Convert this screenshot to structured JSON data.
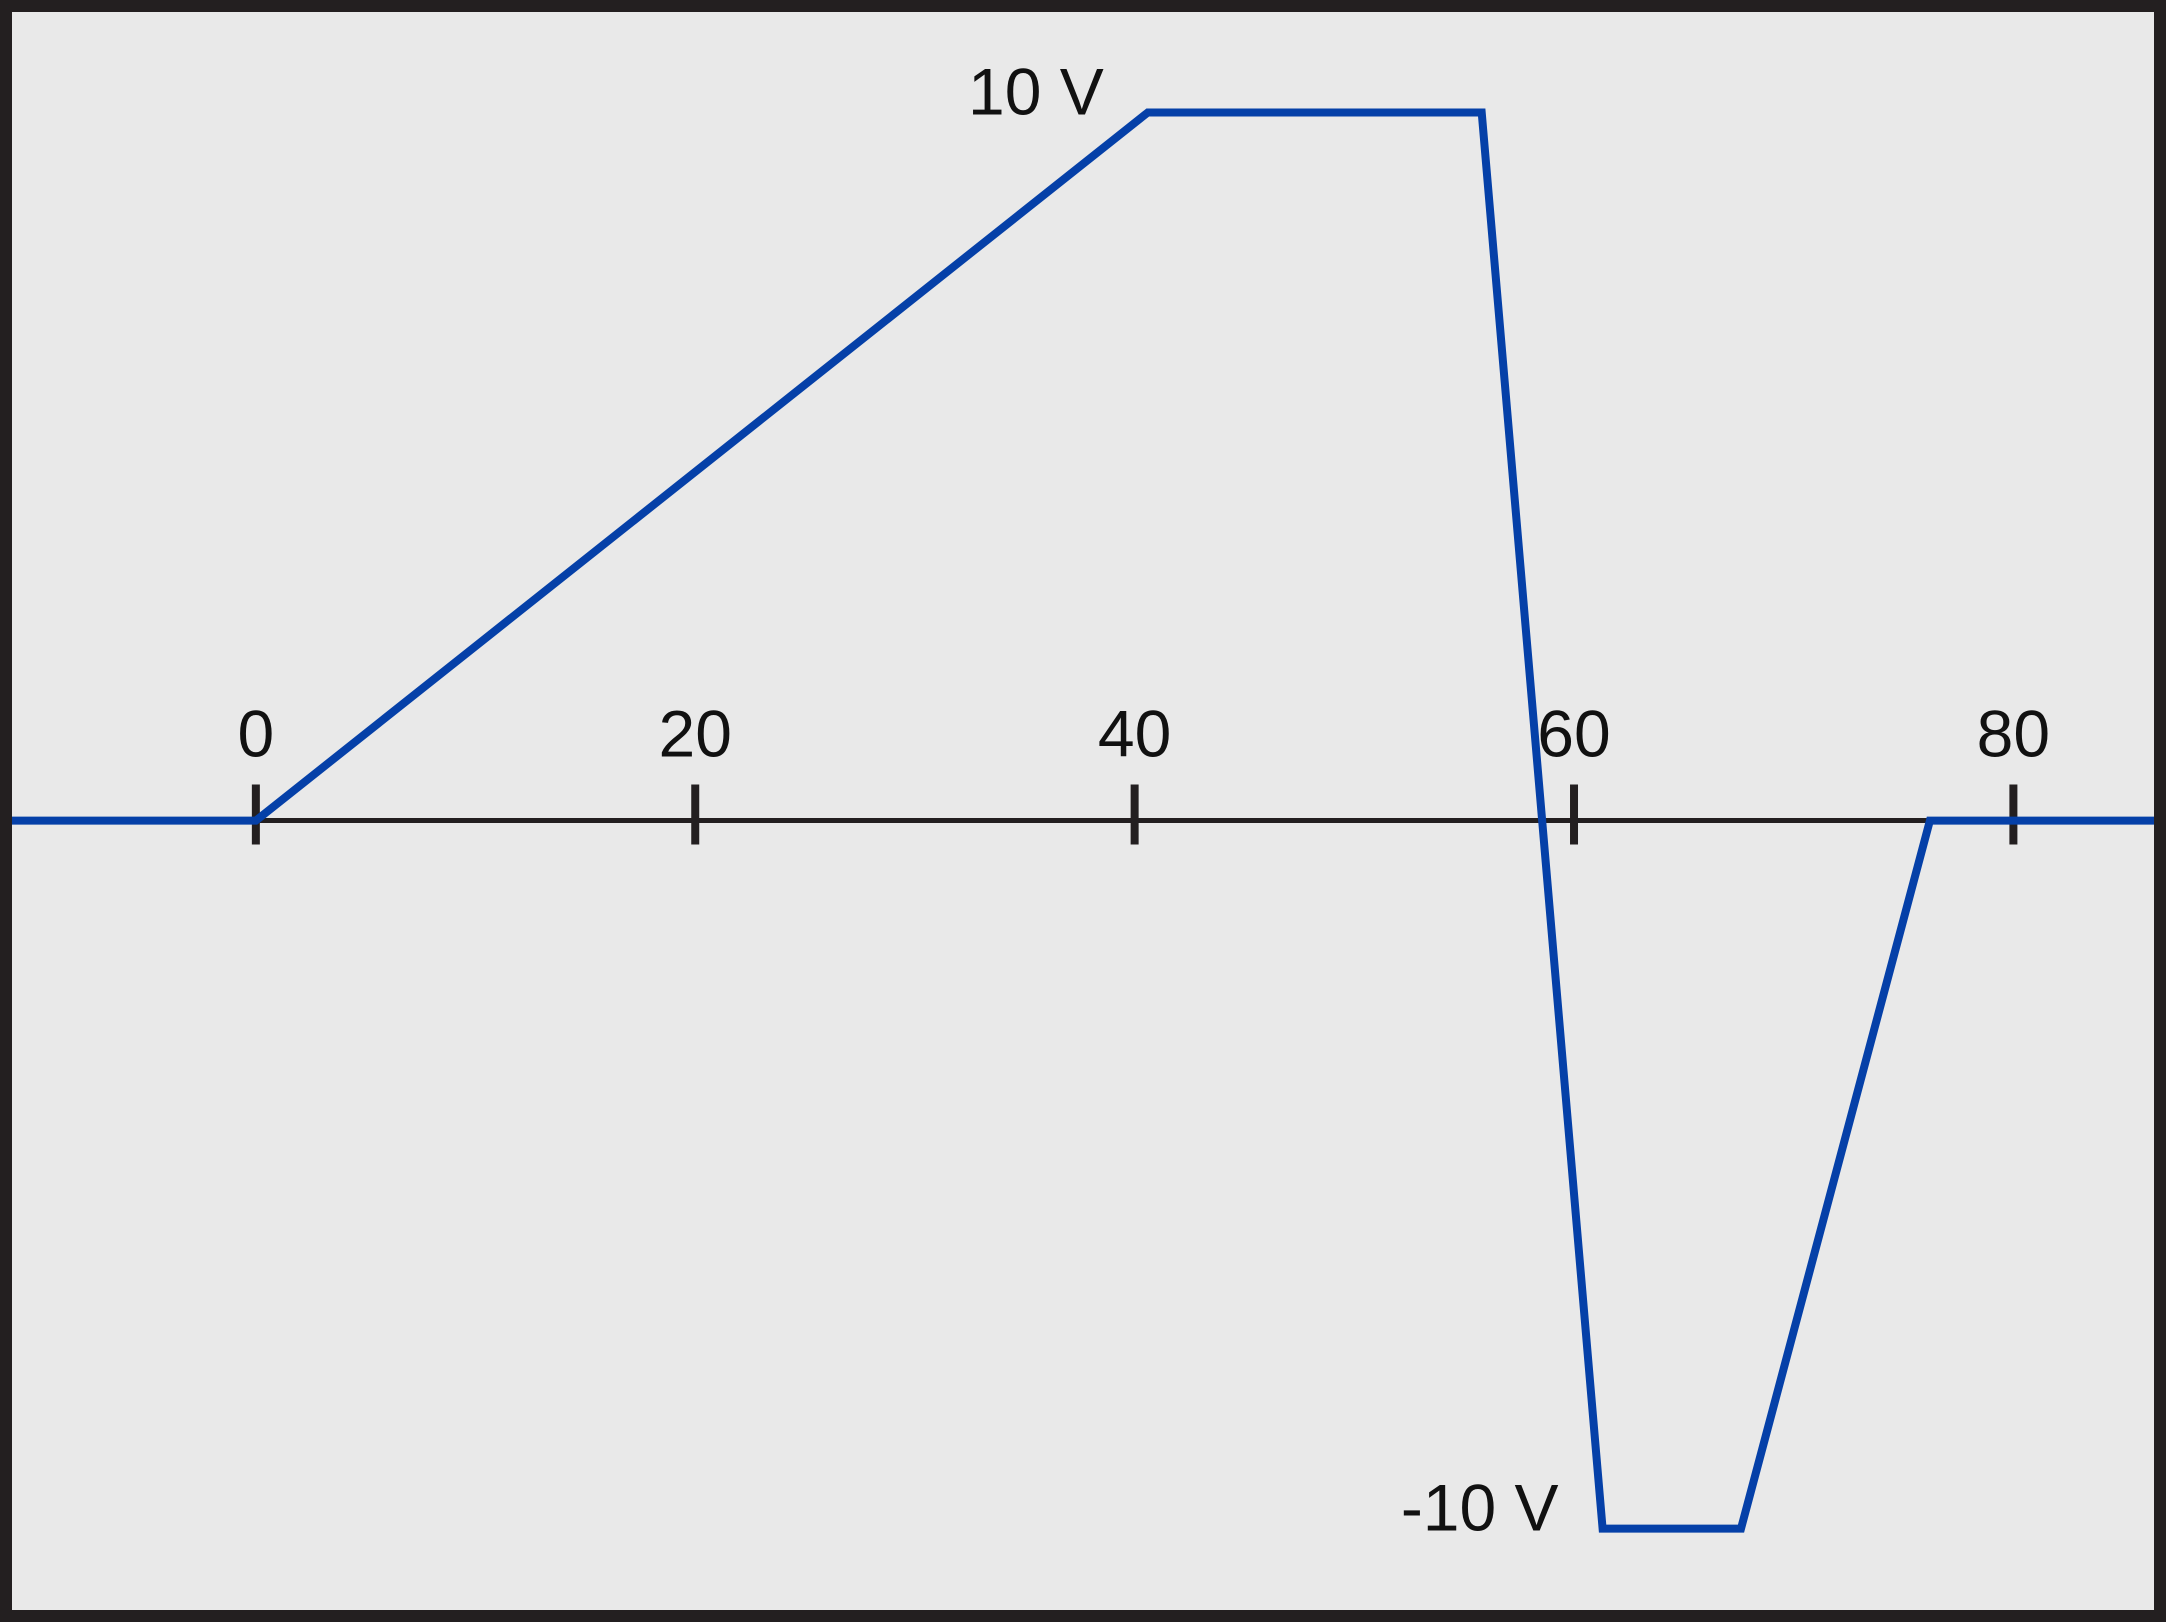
{
  "chart_data": {
    "type": "line",
    "title": "",
    "xlabel": "",
    "ylabel": "",
    "xlim": [
      -11.1,
      86.4
    ],
    "ylim": [
      -11.15,
      11.42
    ],
    "x_ticks": [
      0,
      20,
      40,
      60,
      80
    ],
    "x_tick_labels": [
      "0",
      "20",
      "40",
      "60",
      "80"
    ],
    "grid": false,
    "series": [
      {
        "points": [
          {
            "x": -11.1,
            "y": 0
          },
          {
            "x": 0,
            "y": 0
          },
          {
            "x": 40.6,
            "y": 10
          },
          {
            "x": 55.8,
            "y": 10
          },
          {
            "x": 61.3,
            "y": -10
          },
          {
            "x": 67.6,
            "y": -10
          },
          {
            "x": 76.2,
            "y": 0
          },
          {
            "x": 86.4,
            "y": 0
          }
        ]
      }
    ],
    "annotations": [
      {
        "text": "10 V",
        "x": 40.6,
        "y": 10
      },
      {
        "text": "-10 V",
        "x": 61.3,
        "y": -10
      }
    ]
  },
  "colors": {
    "background": "#e9e9e9",
    "frame": "#231f20",
    "axis": "#231f20",
    "series": "#0540a8",
    "text": "#111111"
  }
}
